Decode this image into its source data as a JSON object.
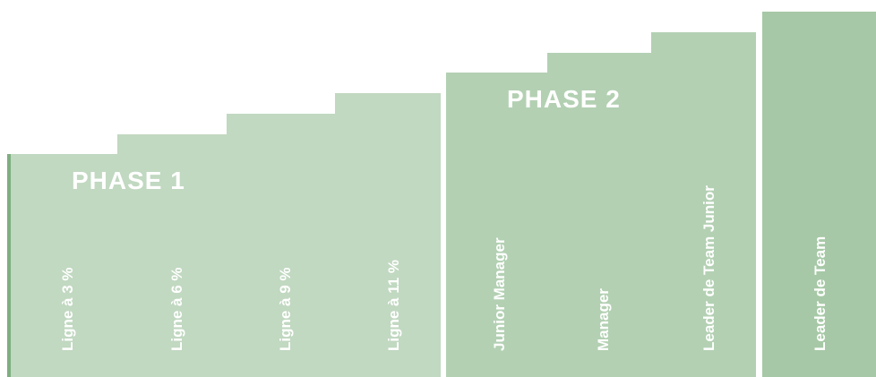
{
  "phases": [
    {
      "title": "PHASE 1",
      "steps": [
        "Ligne à 3 %",
        "Ligne à 6 %",
        "Ligne à 9 %",
        "Ligne à 11 %"
      ]
    },
    {
      "title": "PHASE 2",
      "steps": [
        "Junior Manager",
        "Manager",
        "Leader de Team Junior"
      ]
    },
    {
      "title": "",
      "steps": [
        "Leader de Team"
      ]
    }
  ],
  "colors": {
    "phase1": "#c1d8c1",
    "phase2": "#b3d0b3",
    "phase3": "#a6c8a6",
    "text": "#ffffff"
  }
}
